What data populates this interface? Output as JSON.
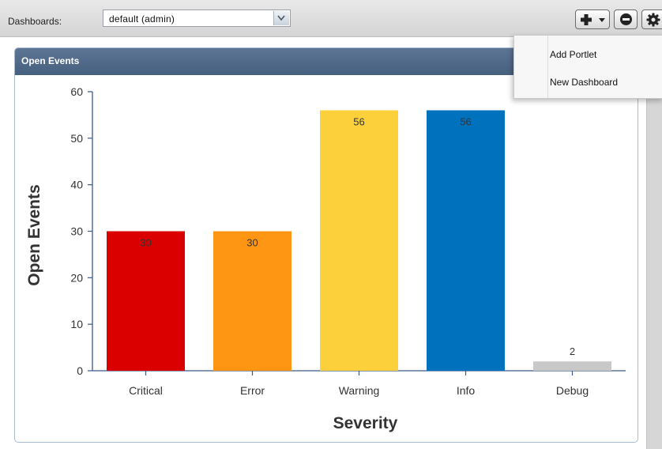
{
  "toolbar": {
    "dashboards_label": "Dashboards:",
    "dashboard_select_value": "default (admin)"
  },
  "menu": {
    "items": [
      {
        "label": "Add Portlet"
      },
      {
        "label": "New Dashboard"
      }
    ]
  },
  "portlet": {
    "title": "Open Events"
  },
  "chart_data": {
    "type": "bar",
    "categories": [
      "Critical",
      "Error",
      "Warning",
      "Info",
      "Debug"
    ],
    "values": [
      30,
      30,
      56,
      56,
      2
    ],
    "colors": [
      "#db0000",
      "#ff9613",
      "#fbd03b",
      "#0071bd",
      "#c8c8c8"
    ],
    "ylabel": "Open Events",
    "xlabel": "Severity",
    "ylim": [
      0,
      60
    ],
    "yticks": [
      0,
      10,
      20,
      30,
      40,
      50,
      60
    ],
    "grid": false,
    "data_labels": true
  }
}
